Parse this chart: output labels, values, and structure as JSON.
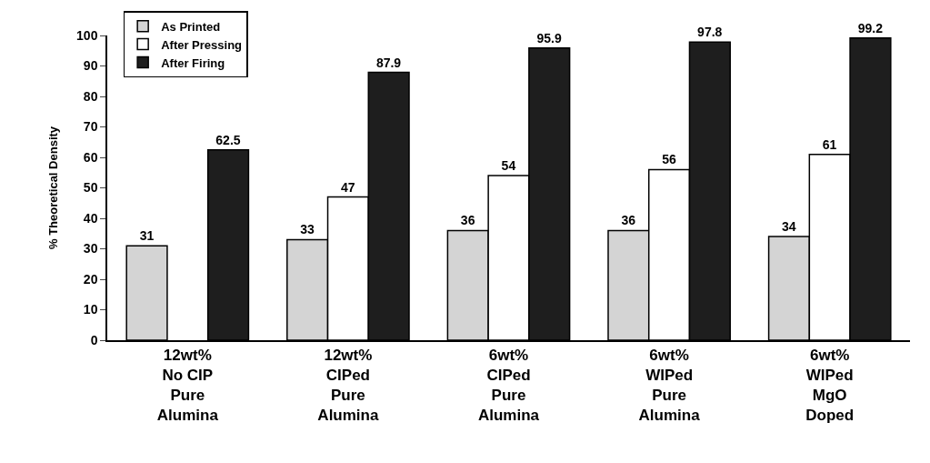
{
  "chart_data": {
    "type": "bar",
    "ylabel": "% Theoretical Density",
    "categories": [
      "12wt%\nNo CIP\nPure\nAlumina",
      "12wt%\nCIPed\nPure\nAlumina",
      "6wt%\nCIPed\nPure\nAlumina",
      "6wt%\nWIPed\nPure\nAlumina",
      "6wt%\nWIPed\nMgO\nDoped"
    ],
    "series": [
      {
        "name": "As Printed",
        "color": "#d4d4d4",
        "values": [
          31,
          33,
          36,
          36,
          34
        ]
      },
      {
        "name": "After Pressing",
        "color": "#ffffff",
        "values": [
          null,
          47,
          54,
          56,
          61
        ]
      },
      {
        "name": "After Firing",
        "color": "#1e1e1e",
        "values": [
          62.5,
          87.9,
          95.9,
          97.8,
          99.2
        ]
      }
    ],
    "ylim": [
      0,
      100
    ],
    "yticks": [
      0,
      10,
      20,
      30,
      40,
      50,
      60,
      70,
      80,
      90,
      100
    ],
    "grid": false,
    "legend": "top left",
    "data_labels": true
  }
}
